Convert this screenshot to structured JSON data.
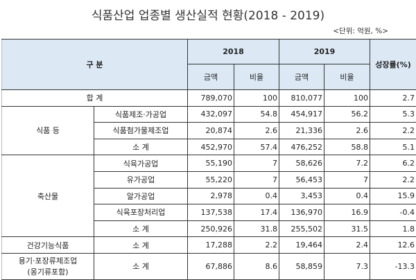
{
  "title": "식품산업 업종별 생산실적 현황(2018 - 2019)",
  "unit": "<단위: 억원, %>",
  "header": {
    "category": "구 분",
    "year1": "2018",
    "year2": "2019",
    "amount": "금액",
    "ratio": "비율",
    "growth": "성장률(%)"
  },
  "total": {
    "label": "합 계",
    "a2018": "789,070",
    "r2018": "100",
    "a2019": "810,077",
    "r2019": "100",
    "growth": "2.7"
  },
  "groups": [
    {
      "name": "식품 등",
      "rows": [
        {
          "label": "식품제조·가공업",
          "a2018": "432,097",
          "r2018": "54.8",
          "a2019": "454,917",
          "r2019": "56.2",
          "growth": "5.3"
        },
        {
          "label": "식품첨가물제조업",
          "a2018": "20,874",
          "r2018": "2.6",
          "a2019": "21,336",
          "r2019": "2.6",
          "growth": "2.2"
        },
        {
          "label": "소 계",
          "a2018": "452,970",
          "r2018": "57.4",
          "a2019": "476,252",
          "r2019": "58.8",
          "growth": "5.1"
        }
      ]
    },
    {
      "name": "축산물",
      "rows": [
        {
          "label": "식육가공업",
          "a2018": "55,190",
          "r2018": "7",
          "a2019": "58,626",
          "r2019": "7.2",
          "growth": "6.2"
        },
        {
          "label": "유가공업",
          "a2018": "55,220",
          "r2018": "7",
          "a2019": "56,453",
          "r2019": "7",
          "growth": "2.2"
        },
        {
          "label": "알가공업",
          "a2018": "2,978",
          "r2018": "0.4",
          "a2019": "3,453",
          "r2019": "0.4",
          "growth": "15.9"
        },
        {
          "label": "식육포장처리업",
          "a2018": "137,538",
          "r2018": "17.4",
          "a2019": "136,970",
          "r2019": "16.9",
          "growth": "-0.4"
        },
        {
          "label": "소 계",
          "a2018": "250,926",
          "r2018": "31.8",
          "a2019": "255,502",
          "r2019": "31.5",
          "growth": "1.8"
        }
      ]
    },
    {
      "name": "건강기능식품",
      "rows": [
        {
          "label": "소 계",
          "a2018": "17,288",
          "r2018": "2.2",
          "a2019": "19,464",
          "r2019": "2.4",
          "growth": "12.6"
        }
      ]
    },
    {
      "name": "용기·포장류제조업",
      "name2": "(옹기류포함)",
      "rows": [
        {
          "label": "소 계",
          "a2018": "67,886",
          "r2018": "8.6",
          "a2019": "58,859",
          "r2019": "7.3",
          "growth": "-13.3"
        }
      ]
    }
  ]
}
